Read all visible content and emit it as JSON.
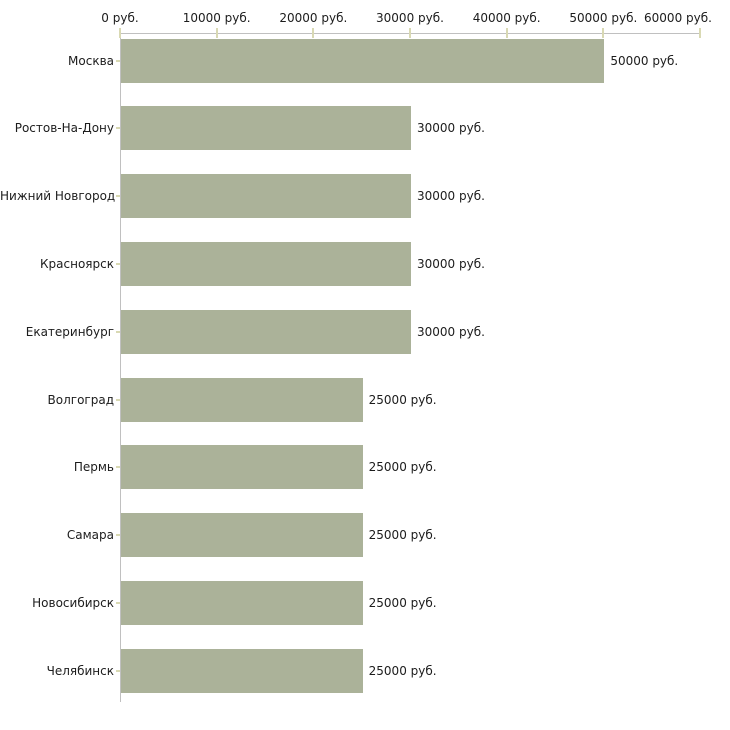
{
  "chart_data": {
    "type": "bar",
    "orientation": "horizontal",
    "title": "",
    "categories": [
      "Москва",
      "Ростов-На-Дону",
      "Нижний Новгород",
      "Красноярск",
      "Екатеринбург",
      "Волгоград",
      "Пермь",
      "Самара",
      "Новосибирск",
      "Челябинск"
    ],
    "values": [
      50000,
      30000,
      30000,
      30000,
      30000,
      25000,
      25000,
      25000,
      25000,
      25000
    ],
    "value_labels": [
      "50000 руб.",
      "30000 руб.",
      "30000 руб.",
      "30000 руб.",
      "30000 руб.",
      "25000 руб.",
      "25000 руб.",
      "25000 руб.",
      "25000 руб.",
      "25000 руб."
    ],
    "xlabel": "",
    "ylabel": "",
    "xlim": [
      0,
      60000
    ],
    "x_ticks": [
      0,
      10000,
      20000,
      30000,
      40000,
      50000,
      60000
    ],
    "x_tick_labels": [
      "0 руб.",
      "10000 руб.",
      "20000 руб.",
      "30000 руб.",
      "40000 руб.",
      "50000 руб.",
      "60000 руб."
    ],
    "grid": false,
    "legend": false,
    "unit_suffix": " руб.",
    "colors": {
      "bar": "#abb299",
      "axis": "#c0c0c0",
      "tick": "#d9d9b3",
      "text": "#1c1c1c",
      "background": "#ffffff"
    }
  }
}
